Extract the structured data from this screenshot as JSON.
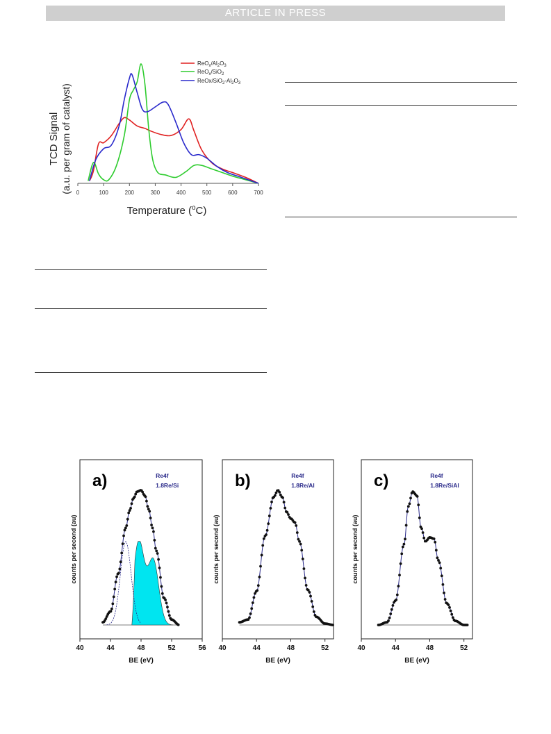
{
  "header": {
    "banner": "ARTICLE IN PRESS"
  },
  "figures": {
    "tpr": {
      "ylabel_line1": "TCD Signal",
      "ylabel_line2": "(a.u. per gram of catalyst)",
      "xlabel": "Temperature (°C)",
      "xticks": [
        "0",
        "100",
        "200",
        "300",
        "400",
        "500",
        "600",
        "700"
      ],
      "colors": {
        "re_al": "#e02020",
        "re_si": "#2ecc2e",
        "re_sial": "#2a2acc"
      }
    },
    "xps": {
      "ylabel": "counts per second (au)",
      "xlabel": "BE (eV)",
      "panel_a": {
        "letter": "a)",
        "line1": "Re4f",
        "line2": "1.8Re/Si",
        "xticks": [
          "40",
          "44",
          "48",
          "52",
          "56"
        ]
      },
      "panel_b": {
        "letter": "b)",
        "line1": "Re4f",
        "line2": "1.8Re/Al",
        "xticks": [
          "40",
          "44",
          "48",
          "52"
        ]
      },
      "panel_c": {
        "letter": "c)",
        "line1": "Re4f",
        "line2": "1.8Re/SiAl",
        "xticks": [
          "40",
          "44",
          "48",
          "52"
        ]
      }
    }
  },
  "chart_data": [
    {
      "type": "line",
      "xlabel": "Temperature (°C)",
      "ylabel": "TCD Signal (a.u. per gram of catalyst)",
      "xlim": [
        0,
        700
      ],
      "legend_position": "top-right",
      "series": [
        {
          "name": "ReOx/Al2O3",
          "color": "#e02020",
          "x": [
            45,
            60,
            80,
            100,
            130,
            160,
            180,
            200,
            230,
            260,
            280,
            320,
            360,
            400,
            430,
            450,
            480,
            520,
            560,
            600,
            650,
            700
          ],
          "y": [
            0.02,
            0.1,
            0.33,
            0.34,
            0.4,
            0.5,
            0.55,
            0.53,
            0.48,
            0.46,
            0.44,
            0.41,
            0.4,
            0.45,
            0.54,
            0.44,
            0.28,
            0.17,
            0.12,
            0.09,
            0.05,
            0.0
          ]
        },
        {
          "name": "ReOx/SiO2",
          "color": "#2ecc2e",
          "x": [
            40,
            55,
            65,
            80,
            100,
            120,
            150,
            180,
            200,
            215,
            230,
            245,
            260,
            275,
            290,
            310,
            340,
            380,
            420,
            450,
            480,
            520,
            560,
            600,
            650,
            700
          ],
          "y": [
            0.02,
            0.15,
            0.17,
            0.08,
            0.03,
            0.03,
            0.15,
            0.4,
            0.7,
            0.78,
            0.85,
            1.0,
            0.83,
            0.45,
            0.2,
            0.09,
            0.07,
            0.05,
            0.1,
            0.15,
            0.15,
            0.12,
            0.09,
            0.06,
            0.03,
            0.0
          ]
        },
        {
          "name": "ReOx/SiO2-Al2O3",
          "color": "#2a2acc",
          "x": [
            45,
            70,
            100,
            130,
            160,
            180,
            200,
            210,
            230,
            250,
            270,
            300,
            330,
            350,
            380,
            410,
            440,
            470,
            500,
            540,
            580,
            620,
            660,
            700
          ],
          "y": [
            0.02,
            0.2,
            0.29,
            0.32,
            0.48,
            0.7,
            0.88,
            0.91,
            0.76,
            0.62,
            0.6,
            0.64,
            0.68,
            0.66,
            0.51,
            0.34,
            0.24,
            0.24,
            0.21,
            0.14,
            0.09,
            0.06,
            0.03,
            0.0
          ]
        }
      ]
    },
    {
      "type": "scatter",
      "panel": "a)",
      "xlabel": "BE (eV)",
      "ylabel": "counts per second (au)",
      "xlim": [
        40,
        56
      ],
      "series": [
        {
          "name": "Re4f 1.8Re/Si",
          "x": [
            43.0,
            44.0,
            45.0,
            46.0,
            46.5,
            47.0,
            47.5,
            48.0,
            48.5,
            49.0,
            49.5,
            50.0,
            51.0,
            52.0,
            53.0
          ],
          "y": [
            0.02,
            0.1,
            0.38,
            0.72,
            0.85,
            0.94,
            0.99,
            1.0,
            0.96,
            0.86,
            0.72,
            0.55,
            0.2,
            0.04,
            0.0
          ]
        }
      ]
    },
    {
      "type": "scatter",
      "panel": "b)",
      "xlabel": "BE (eV)",
      "ylabel": "counts per second (au)",
      "xlim": [
        40,
        53
      ],
      "series": [
        {
          "name": "Re4f 1.8Re/Al",
          "x": [
            42.0,
            43.0,
            44.0,
            45.0,
            46.0,
            46.5,
            47.0,
            47.5,
            48.0,
            48.5,
            49.0,
            50.0,
            51.0,
            52.0,
            53.0
          ],
          "y": [
            0.02,
            0.04,
            0.25,
            0.66,
            0.95,
            1.0,
            0.95,
            0.84,
            0.79,
            0.76,
            0.62,
            0.26,
            0.06,
            0.01,
            0.0
          ]
        }
      ]
    },
    {
      "type": "scatter",
      "panel": "c)",
      "xlabel": "BE (eV)",
      "ylabel": "counts per second (au)",
      "xlim": [
        40,
        53
      ],
      "series": [
        {
          "name": "Re4f 1.8Re/SiAl",
          "x": [
            42.0,
            43.0,
            44.0,
            45.0,
            45.5,
            46.0,
            46.5,
            47.0,
            47.5,
            48.0,
            48.5,
            49.0,
            50.0,
            51.0,
            52.0,
            52.5
          ],
          "y": [
            0.0,
            0.02,
            0.18,
            0.6,
            0.88,
            0.99,
            0.96,
            0.72,
            0.62,
            0.65,
            0.64,
            0.48,
            0.16,
            0.03,
            0.0,
            0.0
          ]
        }
      ]
    }
  ]
}
